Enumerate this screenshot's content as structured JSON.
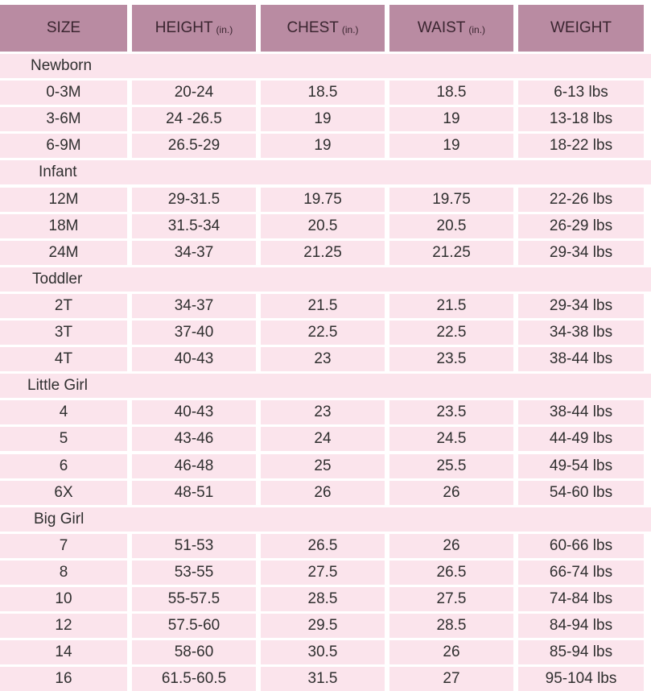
{
  "header": {
    "columns": [
      {
        "label": "SIZE",
        "unit": ""
      },
      {
        "label": "HEIGHT",
        "unit": "(in.)"
      },
      {
        "label": "CHEST",
        "unit": "(in.)"
      },
      {
        "label": "WAIST",
        "unit": "(in.)"
      },
      {
        "label": "WEIGHT",
        "unit": ""
      }
    ]
  },
  "sections": [
    {
      "name": "Newborn",
      "rows": [
        [
          "0-3M",
          "20-24",
          "18.5",
          "18.5",
          "6-13 lbs"
        ],
        [
          "3-6M",
          "24 -26.5",
          "19",
          "19",
          "13-18 lbs"
        ],
        [
          "6-9M",
          "26.5-29",
          "19",
          "19",
          "18-22 lbs"
        ]
      ]
    },
    {
      "name": "Infant",
      "rows": [
        [
          "12M",
          "29-31.5",
          "19.75",
          "19.75",
          "22-26 lbs"
        ],
        [
          "18M",
          "31.5-34",
          "20.5",
          "20.5",
          "26-29 lbs"
        ],
        [
          "24M",
          "34-37",
          "21.25",
          "21.25",
          "29-34 lbs"
        ]
      ]
    },
    {
      "name": "Toddler",
      "rows": [
        [
          "2T",
          "34-37",
          "21.5",
          "21.5",
          "29-34 lbs"
        ],
        [
          "3T",
          "37-40",
          "22.5",
          "22.5",
          "34-38 lbs"
        ],
        [
          "4T",
          "40-43",
          "23",
          "23.5",
          "38-44 lbs"
        ]
      ]
    },
    {
      "name": "Little Girl",
      "rows": [
        [
          "4",
          "40-43",
          "23",
          "23.5",
          "38-44 lbs"
        ],
        [
          "5",
          "43-46",
          "24",
          "24.5",
          "44-49 lbs"
        ],
        [
          "6",
          "46-48",
          "25",
          "25.5",
          "49-54 lbs"
        ],
        [
          "6X",
          "48-51",
          "26",
          "26",
          "54-60 lbs"
        ]
      ]
    },
    {
      "name": "Big Girl",
      "rows": [
        [
          "7",
          "51-53",
          "26.5",
          "26",
          "60-66 lbs"
        ],
        [
          "8",
          "53-55",
          "27.5",
          "26.5",
          "66-74 lbs"
        ],
        [
          "10",
          "55-57.5",
          "28.5",
          "27.5",
          "74-84 lbs"
        ],
        [
          "12",
          "57.5-60",
          "29.5",
          "28.5",
          "84-94 lbs"
        ],
        [
          "14",
          "58-60",
          "30.5",
          "26",
          "85-94 lbs"
        ],
        [
          "16",
          "61.5-60.5",
          "31.5",
          "27",
          "95-104 lbs"
        ]
      ]
    }
  ],
  "colors": {
    "header_bg": "#b98ba2",
    "row_bg": "#fbe4ec",
    "text": "#2f2f2f"
  }
}
